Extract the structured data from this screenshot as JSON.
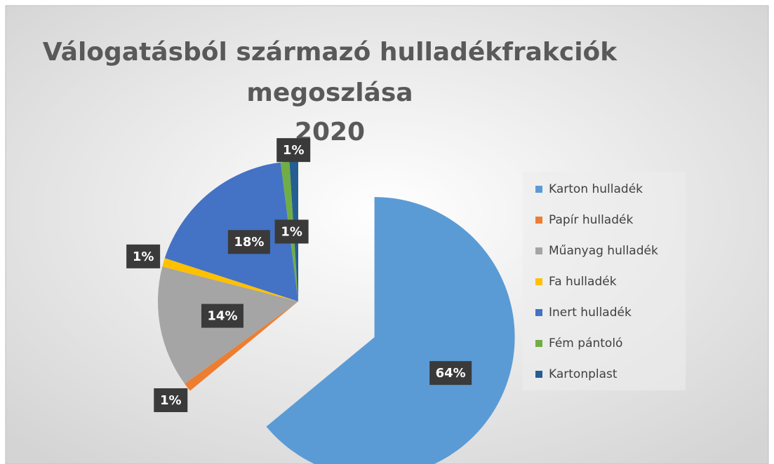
{
  "chart_data": {
    "type": "pie",
    "title": [
      "Válogatásból származó hulladékfrakciók",
      "megoszlása",
      "2020"
    ],
    "categories": [
      "Karton hulladék",
      "Papír hulladék",
      "Műanyag hulladék",
      "Fa hulladék",
      "Inert hulladék",
      "Fém pántoló",
      "Kartonplast"
    ],
    "values": [
      64,
      1,
      14,
      1,
      18,
      1,
      1
    ],
    "value_labels": [
      "64%",
      "1%",
      "14%",
      "1%",
      "18%",
      "1%",
      "1%"
    ],
    "colors": [
      "#5b9bd5",
      "#ed7d31",
      "#a5a5a5",
      "#ffc000",
      "#4472c4",
      "#70ad47",
      "#255e91"
    ],
    "legend": "right"
  }
}
